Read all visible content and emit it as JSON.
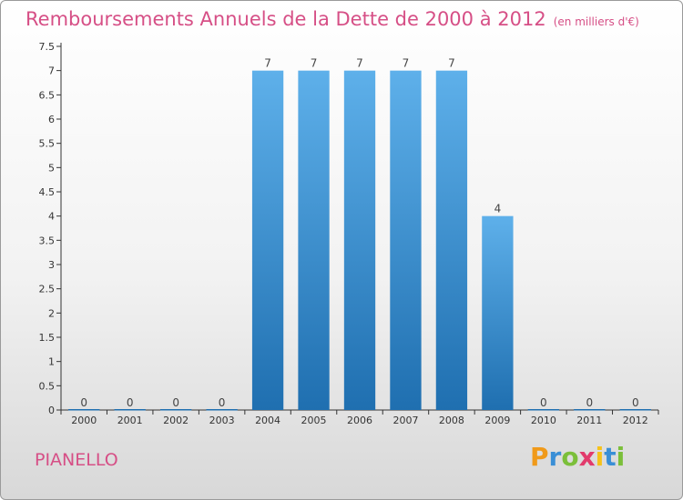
{
  "header": {
    "title": "Remboursements Annuels de la Dette de 2000 à 2012",
    "subtitle": "(en milliers d'€)"
  },
  "footer": {
    "commune": "PIANELLO",
    "logo_text": "Proxiti"
  },
  "colors": {
    "title": "#d64f86",
    "bar_top": "#5eb0ea",
    "bar_bottom": "#1f6fb0",
    "logo_p": "#f09a1a",
    "logo_r": "#3a8fd6",
    "logo_o": "#7bbf3a",
    "logo_x": "#e23b6c",
    "logo_i": "#f6c21a"
  },
  "chart_data": {
    "type": "bar",
    "categories": [
      "2000",
      "2001",
      "2002",
      "2003",
      "2004",
      "2005",
      "2006",
      "2007",
      "2008",
      "2009",
      "2010",
      "2011",
      "2012"
    ],
    "values": [
      0,
      0,
      0,
      0,
      7,
      7,
      7,
      7,
      7,
      4,
      0,
      0,
      0
    ],
    "value_labels": [
      "0",
      "0",
      "0",
      "0",
      "7",
      "7",
      "7",
      "7",
      "7",
      "4",
      "0",
      "0",
      "0"
    ],
    "title": "Remboursements Annuels de la Dette de 2000 à 2012",
    "subtitle": "(en milliers d'€)",
    "xlabel": "",
    "ylabel": "",
    "ylim": [
      0,
      7.5
    ],
    "yticks": [
      0,
      0.5,
      1,
      1.5,
      2,
      2.5,
      3,
      3.5,
      4,
      4.5,
      5,
      5.5,
      6,
      6.5,
      7,
      7.5
    ],
    "ytick_labels": [
      "0",
      "0.5",
      "1",
      "1.5",
      "2",
      "2.5",
      "3",
      "3.5",
      "4",
      "4.5",
      "5",
      "5.5",
      "6",
      "6.5",
      "7",
      "7.5"
    ],
    "grid": false,
    "legend": "none"
  }
}
